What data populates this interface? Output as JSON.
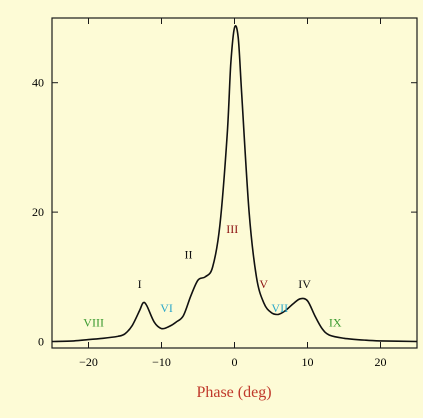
{
  "colors": {
    "background": "#fdfbd6",
    "frame": "#1a1a1a",
    "curve": "#111111",
    "tick_label": "#000000",
    "xlabel": "#c0392b"
  },
  "chart_data": {
    "type": "line",
    "title": "",
    "xlabel": "Phase (deg)",
    "ylabel": "",
    "xlim": [
      -25,
      25
    ],
    "ylim": [
      -1,
      50
    ],
    "grid": false,
    "legend": "none",
    "x_ticks": [
      -20,
      -10,
      0,
      10,
      20
    ],
    "y_ticks": [
      0,
      20,
      40
    ],
    "x_tick_labels": [
      "−20",
      "−10",
      "0",
      "10",
      "20"
    ],
    "y_tick_labels": [
      "0",
      "20",
      "40"
    ],
    "series": [
      {
        "color": "#111111",
        "points": [
          [
            -25,
            0.0
          ],
          [
            -22,
            0.1
          ],
          [
            -20,
            0.3
          ],
          [
            -18,
            0.5
          ],
          [
            -16,
            0.8
          ],
          [
            -15,
            1.2
          ],
          [
            -14,
            2.5
          ],
          [
            -13,
            4.8
          ],
          [
            -12.5,
            6.0
          ],
          [
            -12,
            5.5
          ],
          [
            -11,
            3.0
          ],
          [
            -10,
            2.0
          ],
          [
            -9,
            2.3
          ],
          [
            -8,
            3.0
          ],
          [
            -7,
            4.0
          ],
          [
            -6,
            7.0
          ],
          [
            -5,
            9.5
          ],
          [
            -4,
            10.0
          ],
          [
            -3,
            11.5
          ],
          [
            -2,
            18.0
          ],
          [
            -1,
            32.0
          ],
          [
            -0.5,
            43.0
          ],
          [
            0,
            48.5
          ],
          [
            0.5,
            47.0
          ],
          [
            1,
            38.0
          ],
          [
            2,
            20.0
          ],
          [
            3,
            10.0
          ],
          [
            4,
            6.0
          ],
          [
            5,
            4.5
          ],
          [
            6,
            4.2
          ],
          [
            7,
            4.8
          ],
          [
            8,
            5.8
          ],
          [
            9,
            6.6
          ],
          [
            10,
            6.3
          ],
          [
            11,
            4.0
          ],
          [
            12,
            2.0
          ],
          [
            13,
            1.0
          ],
          [
            15,
            0.5
          ],
          [
            18,
            0.2
          ],
          [
            20,
            0.1
          ],
          [
            25,
            0.0
          ]
        ]
      }
    ],
    "annotations": [
      {
        "text": "VIII",
        "x": -19.3,
        "y": 2.3,
        "color": "#3a9a2f"
      },
      {
        "text": "I",
        "x": -13.0,
        "y": 8.3,
        "color": "#111111"
      },
      {
        "text": "VI",
        "x": -9.3,
        "y": 4.6,
        "color": "#2aa7c9"
      },
      {
        "text": "II",
        "x": -6.3,
        "y": 12.8,
        "color": "#111111"
      },
      {
        "text": "III",
        "x": -0.3,
        "y": 16.8,
        "color": "#8b1010"
      },
      {
        "text": "V",
        "x": 4.0,
        "y": 8.3,
        "color": "#8b1010"
      },
      {
        "text": "VII",
        "x": 6.2,
        "y": 4.6,
        "color": "#2aa7c9"
      },
      {
        "text": "IV",
        "x": 9.6,
        "y": 8.3,
        "color": "#111111"
      },
      {
        "text": "IX",
        "x": 13.8,
        "y": 2.3,
        "color": "#3a9a2f"
      }
    ]
  }
}
